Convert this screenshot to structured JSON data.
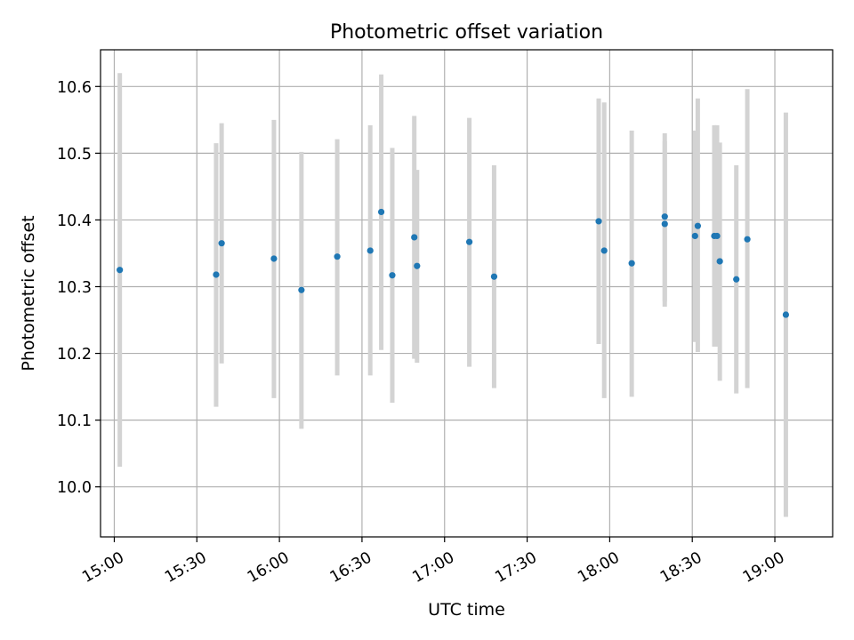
{
  "chart_data": {
    "type": "scatter",
    "title": "Photometric offset variation",
    "xlabel": "UTC time",
    "ylabel": "Photometric offset",
    "x_ticks": [
      "15:00",
      "15:30",
      "16:00",
      "16:30",
      "17:00",
      "17:30",
      "18:00",
      "18:30",
      "19:00"
    ],
    "y_ticks": [
      "10.0",
      "10.1",
      "10.2",
      "10.3",
      "10.4",
      "10.5",
      "10.6"
    ],
    "xlim": [
      "14:55",
      "19:21"
    ],
    "ylim": [
      9.925,
      10.655
    ],
    "grid": true,
    "colors": {
      "point": "#1f77b4",
      "errorbar": "#d3d3d3",
      "grid": "#b0b0b0"
    },
    "series": [
      {
        "points": [
          {
            "time": "15:02",
            "y": 10.325,
            "ylow": 10.03,
            "yhigh": 10.62
          },
          {
            "time": "15:37",
            "y": 10.318,
            "ylow": 10.12,
            "yhigh": 10.515
          },
          {
            "time": "15:39",
            "y": 10.365,
            "ylow": 10.185,
            "yhigh": 10.545
          },
          {
            "time": "15:58",
            "y": 10.342,
            "ylow": 10.133,
            "yhigh": 10.55
          },
          {
            "time": "16:08",
            "y": 10.295,
            "ylow": 10.087,
            "yhigh": 10.502
          },
          {
            "time": "16:21",
            "y": 10.345,
            "ylow": 10.167,
            "yhigh": 10.521
          },
          {
            "time": "16:33",
            "y": 10.354,
            "ylow": 10.167,
            "yhigh": 10.542
          },
          {
            "time": "16:37",
            "y": 10.412,
            "ylow": 10.205,
            "yhigh": 10.618
          },
          {
            "time": "16:41",
            "y": 10.317,
            "ylow": 10.126,
            "yhigh": 10.508
          },
          {
            "time": "16:49",
            "y": 10.374,
            "ylow": 10.192,
            "yhigh": 10.556
          },
          {
            "time": "16:50",
            "y": 10.331,
            "ylow": 10.186,
            "yhigh": 10.475
          },
          {
            "time": "17:09",
            "y": 10.367,
            "ylow": 10.18,
            "yhigh": 10.553
          },
          {
            "time": "17:18",
            "y": 10.315,
            "ylow": 10.148,
            "yhigh": 10.482
          },
          {
            "time": "17:56",
            "y": 10.398,
            "ylow": 10.214,
            "yhigh": 10.582
          },
          {
            "time": "17:58",
            "y": 10.354,
            "ylow": 10.133,
            "yhigh": 10.576
          },
          {
            "time": "18:08",
            "y": 10.335,
            "ylow": 10.135,
            "yhigh": 10.534
          },
          {
            "time": "18:20",
            "y": 10.405,
            "ylow": 10.278,
            "yhigh": 10.53
          },
          {
            "time": "18:20",
            "y": 10.394,
            "ylow": 10.27,
            "yhigh": 10.518
          },
          {
            "time": "18:31",
            "y": 10.376,
            "ylow": 10.217,
            "yhigh": 10.534
          },
          {
            "time": "18:32",
            "y": 10.391,
            "ylow": 10.202,
            "yhigh": 10.582
          },
          {
            "time": "18:38",
            "y": 10.376,
            "ylow": 10.21,
            "yhigh": 10.542
          },
          {
            "time": "18:39",
            "y": 10.376,
            "ylow": 10.21,
            "yhigh": 10.542
          },
          {
            "time": "18:40",
            "y": 10.338,
            "ylow": 10.159,
            "yhigh": 10.516
          },
          {
            "time": "18:46",
            "y": 10.311,
            "ylow": 10.14,
            "yhigh": 10.482
          },
          {
            "time": "18:50",
            "y": 10.371,
            "ylow": 10.148,
            "yhigh": 10.596
          },
          {
            "time": "19:04",
            "y": 10.258,
            "ylow": 9.955,
            "yhigh": 10.561
          }
        ]
      }
    ]
  }
}
